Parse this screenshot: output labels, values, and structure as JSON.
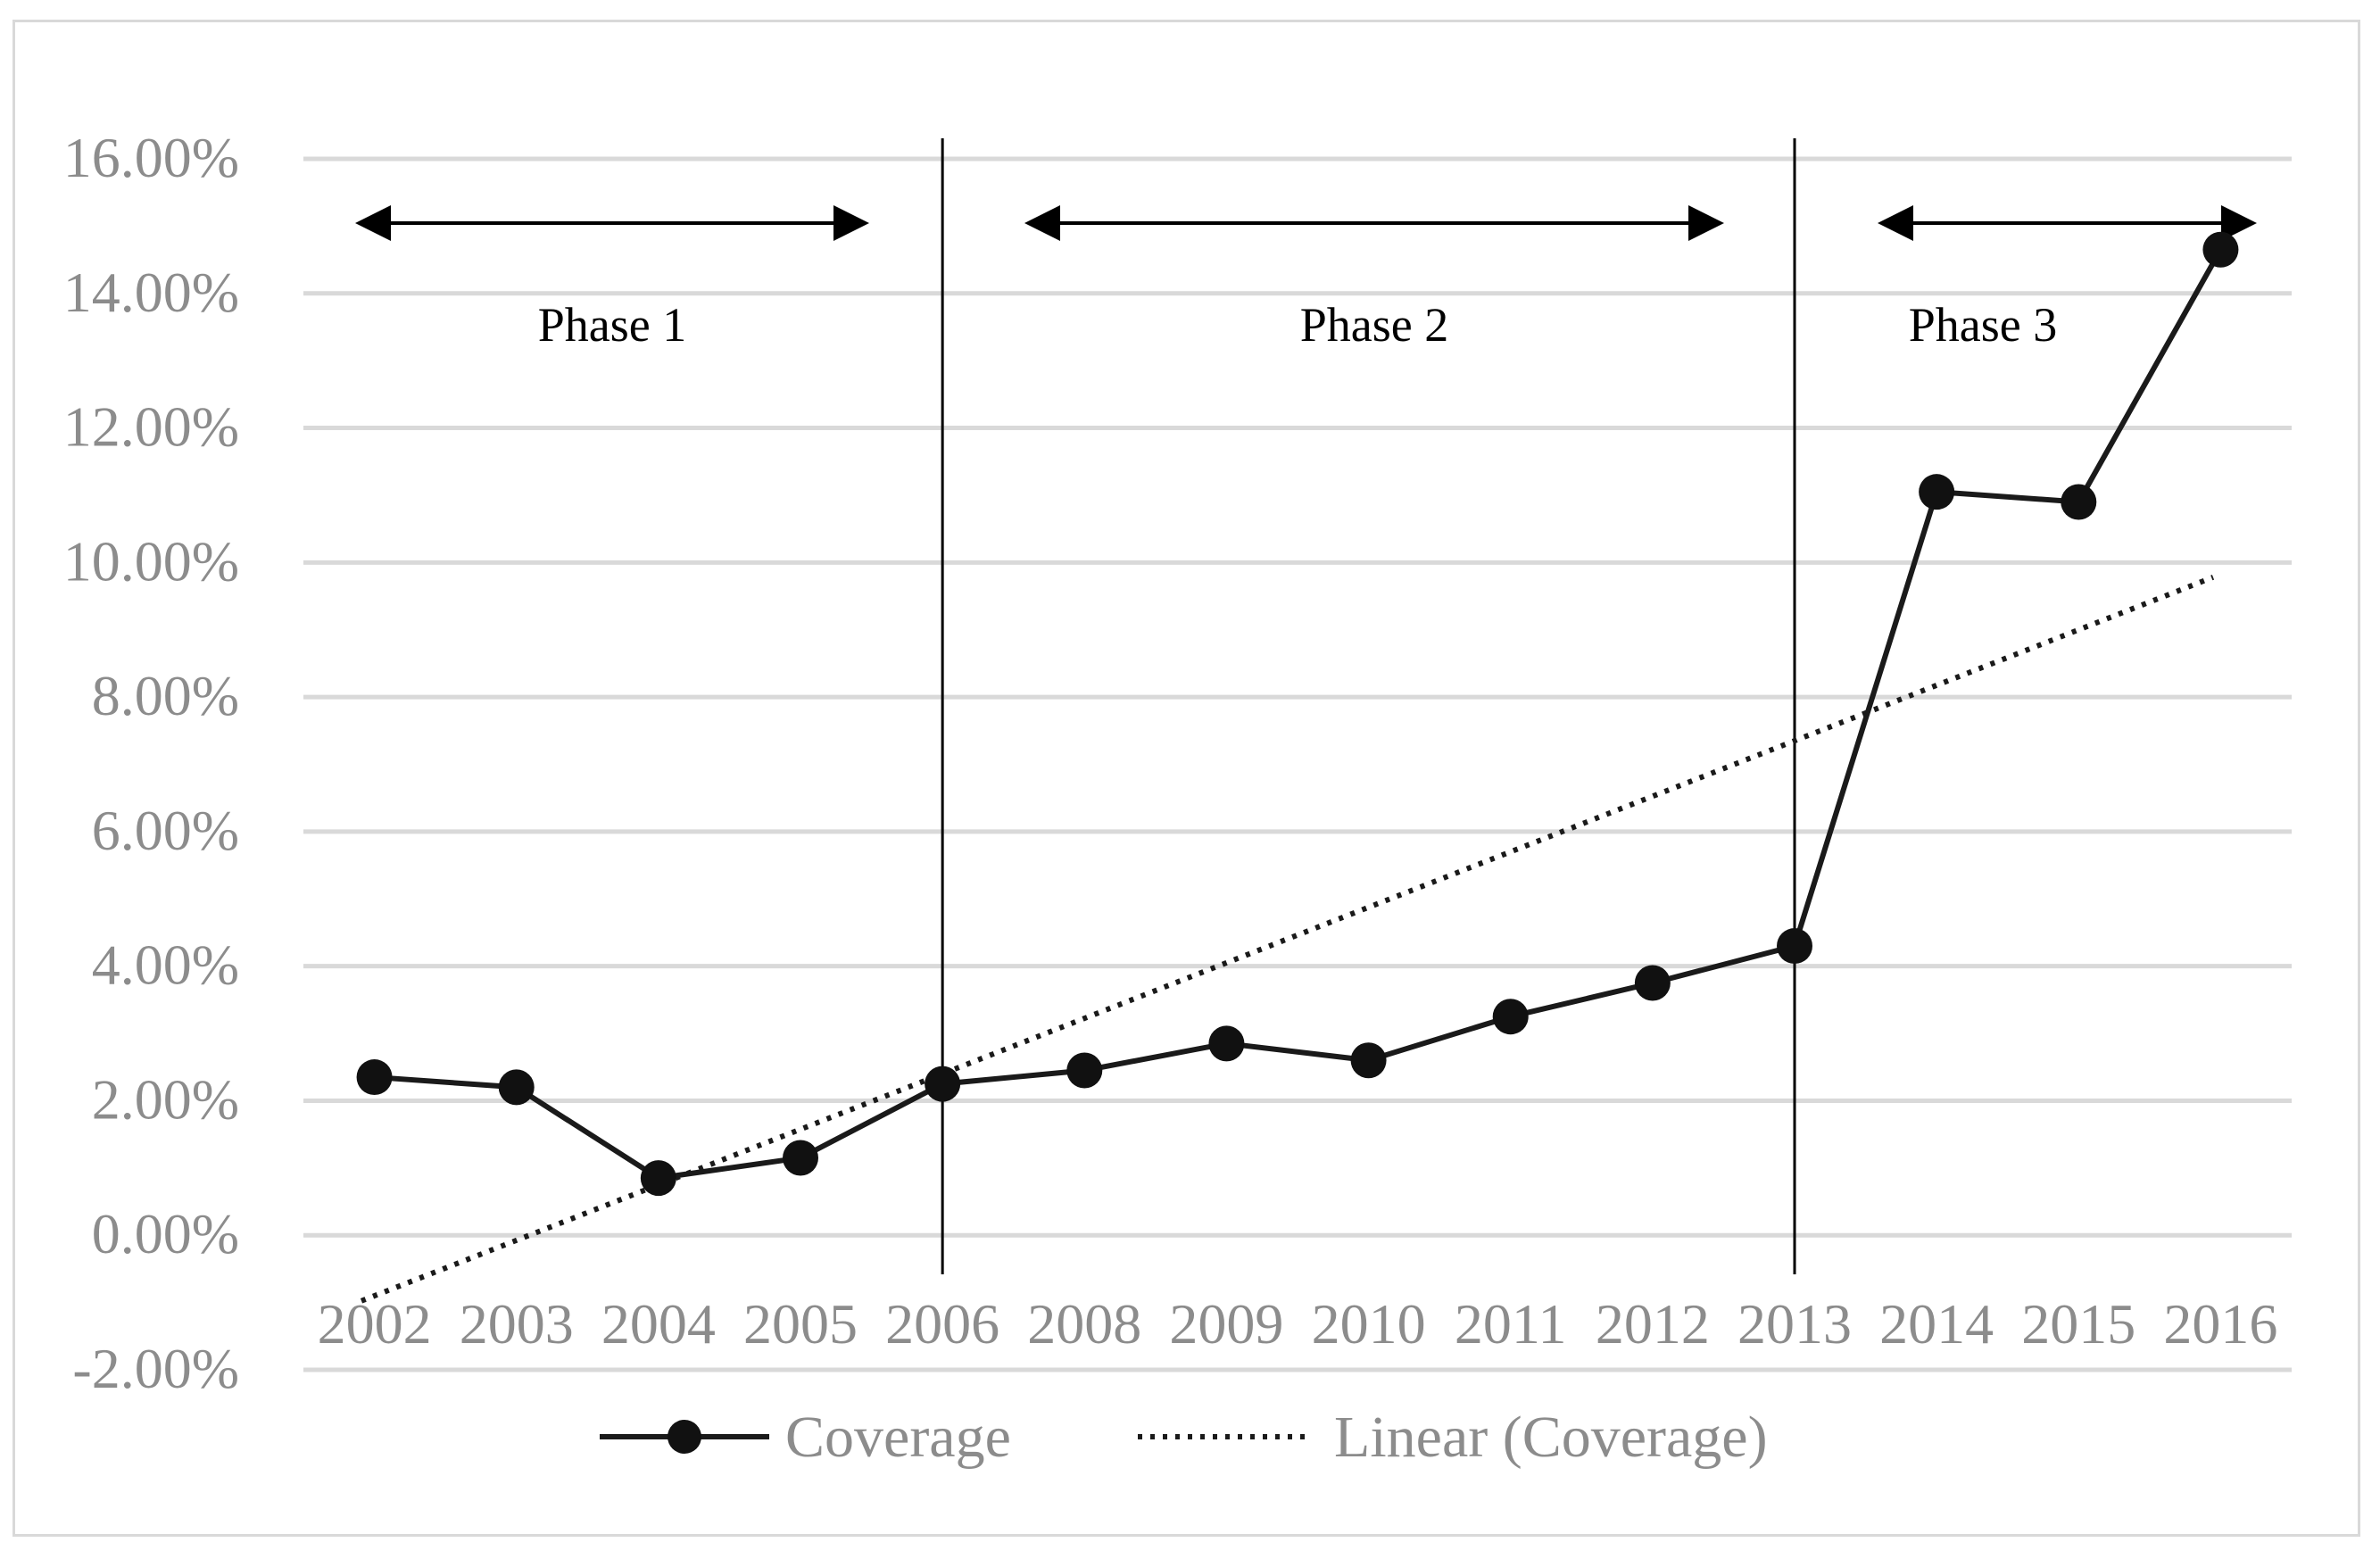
{
  "chart_data": {
    "type": "line",
    "title": "",
    "xlabel": "",
    "ylabel": "",
    "categories": [
      "2002",
      "2003",
      "2004",
      "2005",
      "2006",
      "2008",
      "2009",
      "2010",
      "2011",
      "2012",
      "2013",
      "2014",
      "2015",
      "2016"
    ],
    "series": [
      {
        "name": "Coverage",
        "style": "solid line with circle markers",
        "values": [
          0.0235,
          0.022,
          0.0085,
          0.0115,
          0.0225,
          0.0245,
          0.0285,
          0.026,
          0.0325,
          0.0375,
          0.043,
          0.1105,
          0.109,
          0.1465
        ]
      },
      {
        "name": "Linear (Coverage)",
        "style": "dotted trendline",
        "values": [
          -0.009,
          -0.00075,
          0.0075,
          0.01575,
          0.024,
          0.03225,
          0.0405,
          0.04875,
          0.057,
          0.06525,
          0.0735,
          0.08175,
          0.09,
          0.09825
        ]
      }
    ],
    "ylim": [
      -0.02,
      0.16
    ],
    "yticks": [
      "16.00%",
      "14.00%",
      "12.00%",
      "10.00%",
      "8.00%",
      "6.00%",
      "4.00%",
      "2.00%",
      "0.00%",
      "-2.00%"
    ],
    "ytick_values": [
      0.16,
      0.14,
      0.12,
      0.1,
      0.08,
      0.06,
      0.04,
      0.02,
      0.0,
      -0.02
    ],
    "grid": true,
    "legend_position": "bottom",
    "phase_dividers_after": [
      "2006",
      "2013"
    ],
    "phases": [
      {
        "label": "Phase 1",
        "from": "2002",
        "to": "2006"
      },
      {
        "label": "Phase 2",
        "from": "2006",
        "to": "2013"
      },
      {
        "label": "Phase 3",
        "from": "2013",
        "to": "2016"
      }
    ],
    "colors": {
      "line": "#1a1a1a",
      "grid": "#d9d9d9",
      "text": "#8c8c8c",
      "annotation": "#000000"
    }
  }
}
